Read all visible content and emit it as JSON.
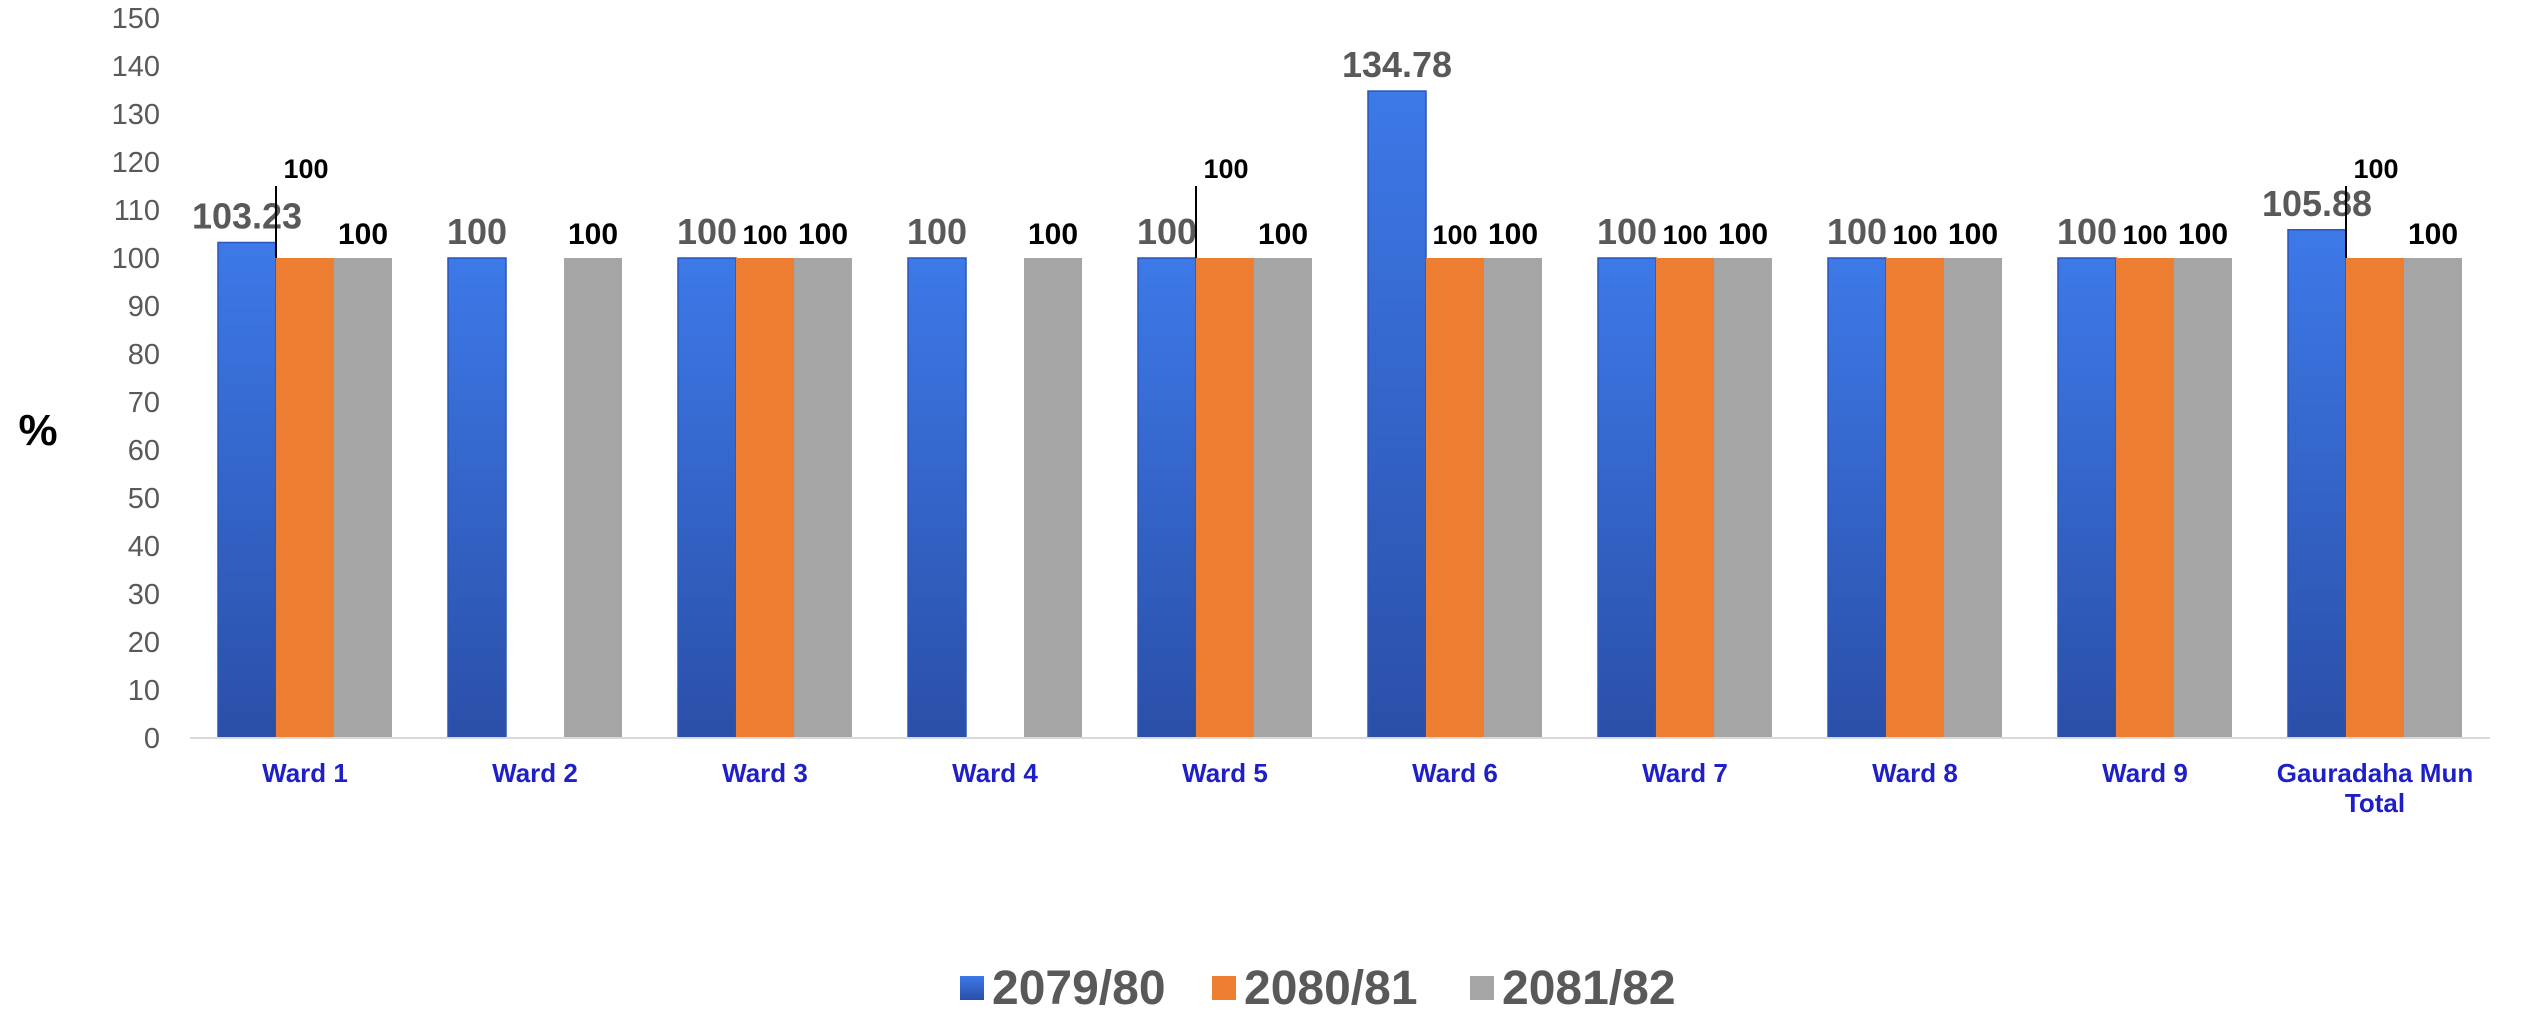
{
  "chart_data": {
    "type": "bar",
    "title": "",
    "xlabel": "",
    "ylabel": "%",
    "ylim": [
      0,
      150
    ],
    "yticks": [
      0,
      10,
      20,
      30,
      40,
      50,
      60,
      70,
      80,
      90,
      100,
      110,
      120,
      130,
      140,
      150
    ],
    "categories": [
      "Ward 1",
      "Ward 2",
      "Ward 3",
      "Ward 4",
      "Ward 5",
      "Ward 6",
      "Ward 7",
      "Ward 8",
      "Ward 9",
      "Gauradaha Mun Total"
    ],
    "series": [
      {
        "name": "2079/80",
        "color": "#3c6fdb",
        "values": [
          103.23,
          100,
          100,
          100,
          100,
          134.78,
          100,
          100,
          100,
          105.88
        ]
      },
      {
        "name": "2080/81",
        "color": "#ed7d31",
        "values": [
          100,
          null,
          100,
          null,
          100,
          100,
          100,
          100,
          100,
          100
        ]
      },
      {
        "name": "2081/82",
        "color": "#a5a5a5",
        "values": [
          100,
          100,
          100,
          100,
          100,
          100,
          100,
          100,
          100,
          100
        ]
      }
    ],
    "data_labels": [
      [
        "103.23",
        "100",
        "100"
      ],
      [
        "100",
        "",
        "100"
      ],
      [
        "100",
        "100",
        "100"
      ],
      [
        "100",
        "",
        "100"
      ],
      [
        "100",
        "100",
        "100"
      ],
      [
        "134.78",
        "100",
        "100"
      ],
      [
        "100",
        "100",
        "100"
      ],
      [
        "100",
        "100",
        "100"
      ],
      [
        "100",
        "100",
        "100"
      ],
      [
        "105.88",
        "100",
        "100"
      ]
    ],
    "grid": false,
    "legend_position": "bottom-center"
  }
}
